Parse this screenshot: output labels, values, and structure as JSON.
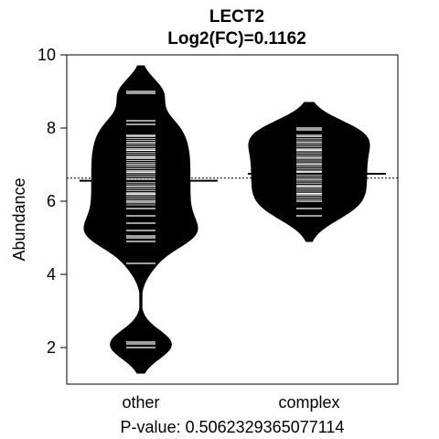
{
  "chart_data": {
    "type": "beanplot",
    "title": "LECT2",
    "subtitle": "Log2(FC)=0.1162",
    "xlabel": "P-value: 0.5062329365077114",
    "ylabel": "Abundance",
    "categories": [
      "other",
      "complex"
    ],
    "ylim": [
      1,
      10
    ],
    "yticks": [
      2,
      4,
      6,
      8,
      10
    ],
    "overall_mean": 6.63,
    "groups": [
      {
        "name": "other",
        "mean": 6.56,
        "range": [
          1.3,
          9.7
        ],
        "density_peak": 6.6,
        "points": [
          2.0,
          2.1,
          2.15,
          4.3,
          4.9,
          5.0,
          5.05,
          5.2,
          5.4,
          5.6,
          5.8,
          6.0,
          6.2,
          6.4,
          6.6,
          6.8,
          7.0,
          7.2,
          7.4,
          7.6,
          7.8,
          8.1,
          8.2,
          8.95,
          9.0
        ]
      },
      {
        "name": "complex",
        "mean": 6.75,
        "range": [
          4.9,
          8.7
        ],
        "density_peak": 6.8,
        "points": [
          5.6,
          5.8,
          6.0,
          6.2,
          6.4,
          6.6,
          6.8,
          7.0,
          7.2,
          7.4,
          7.6,
          7.8,
          7.95,
          8.0
        ]
      }
    ]
  }
}
